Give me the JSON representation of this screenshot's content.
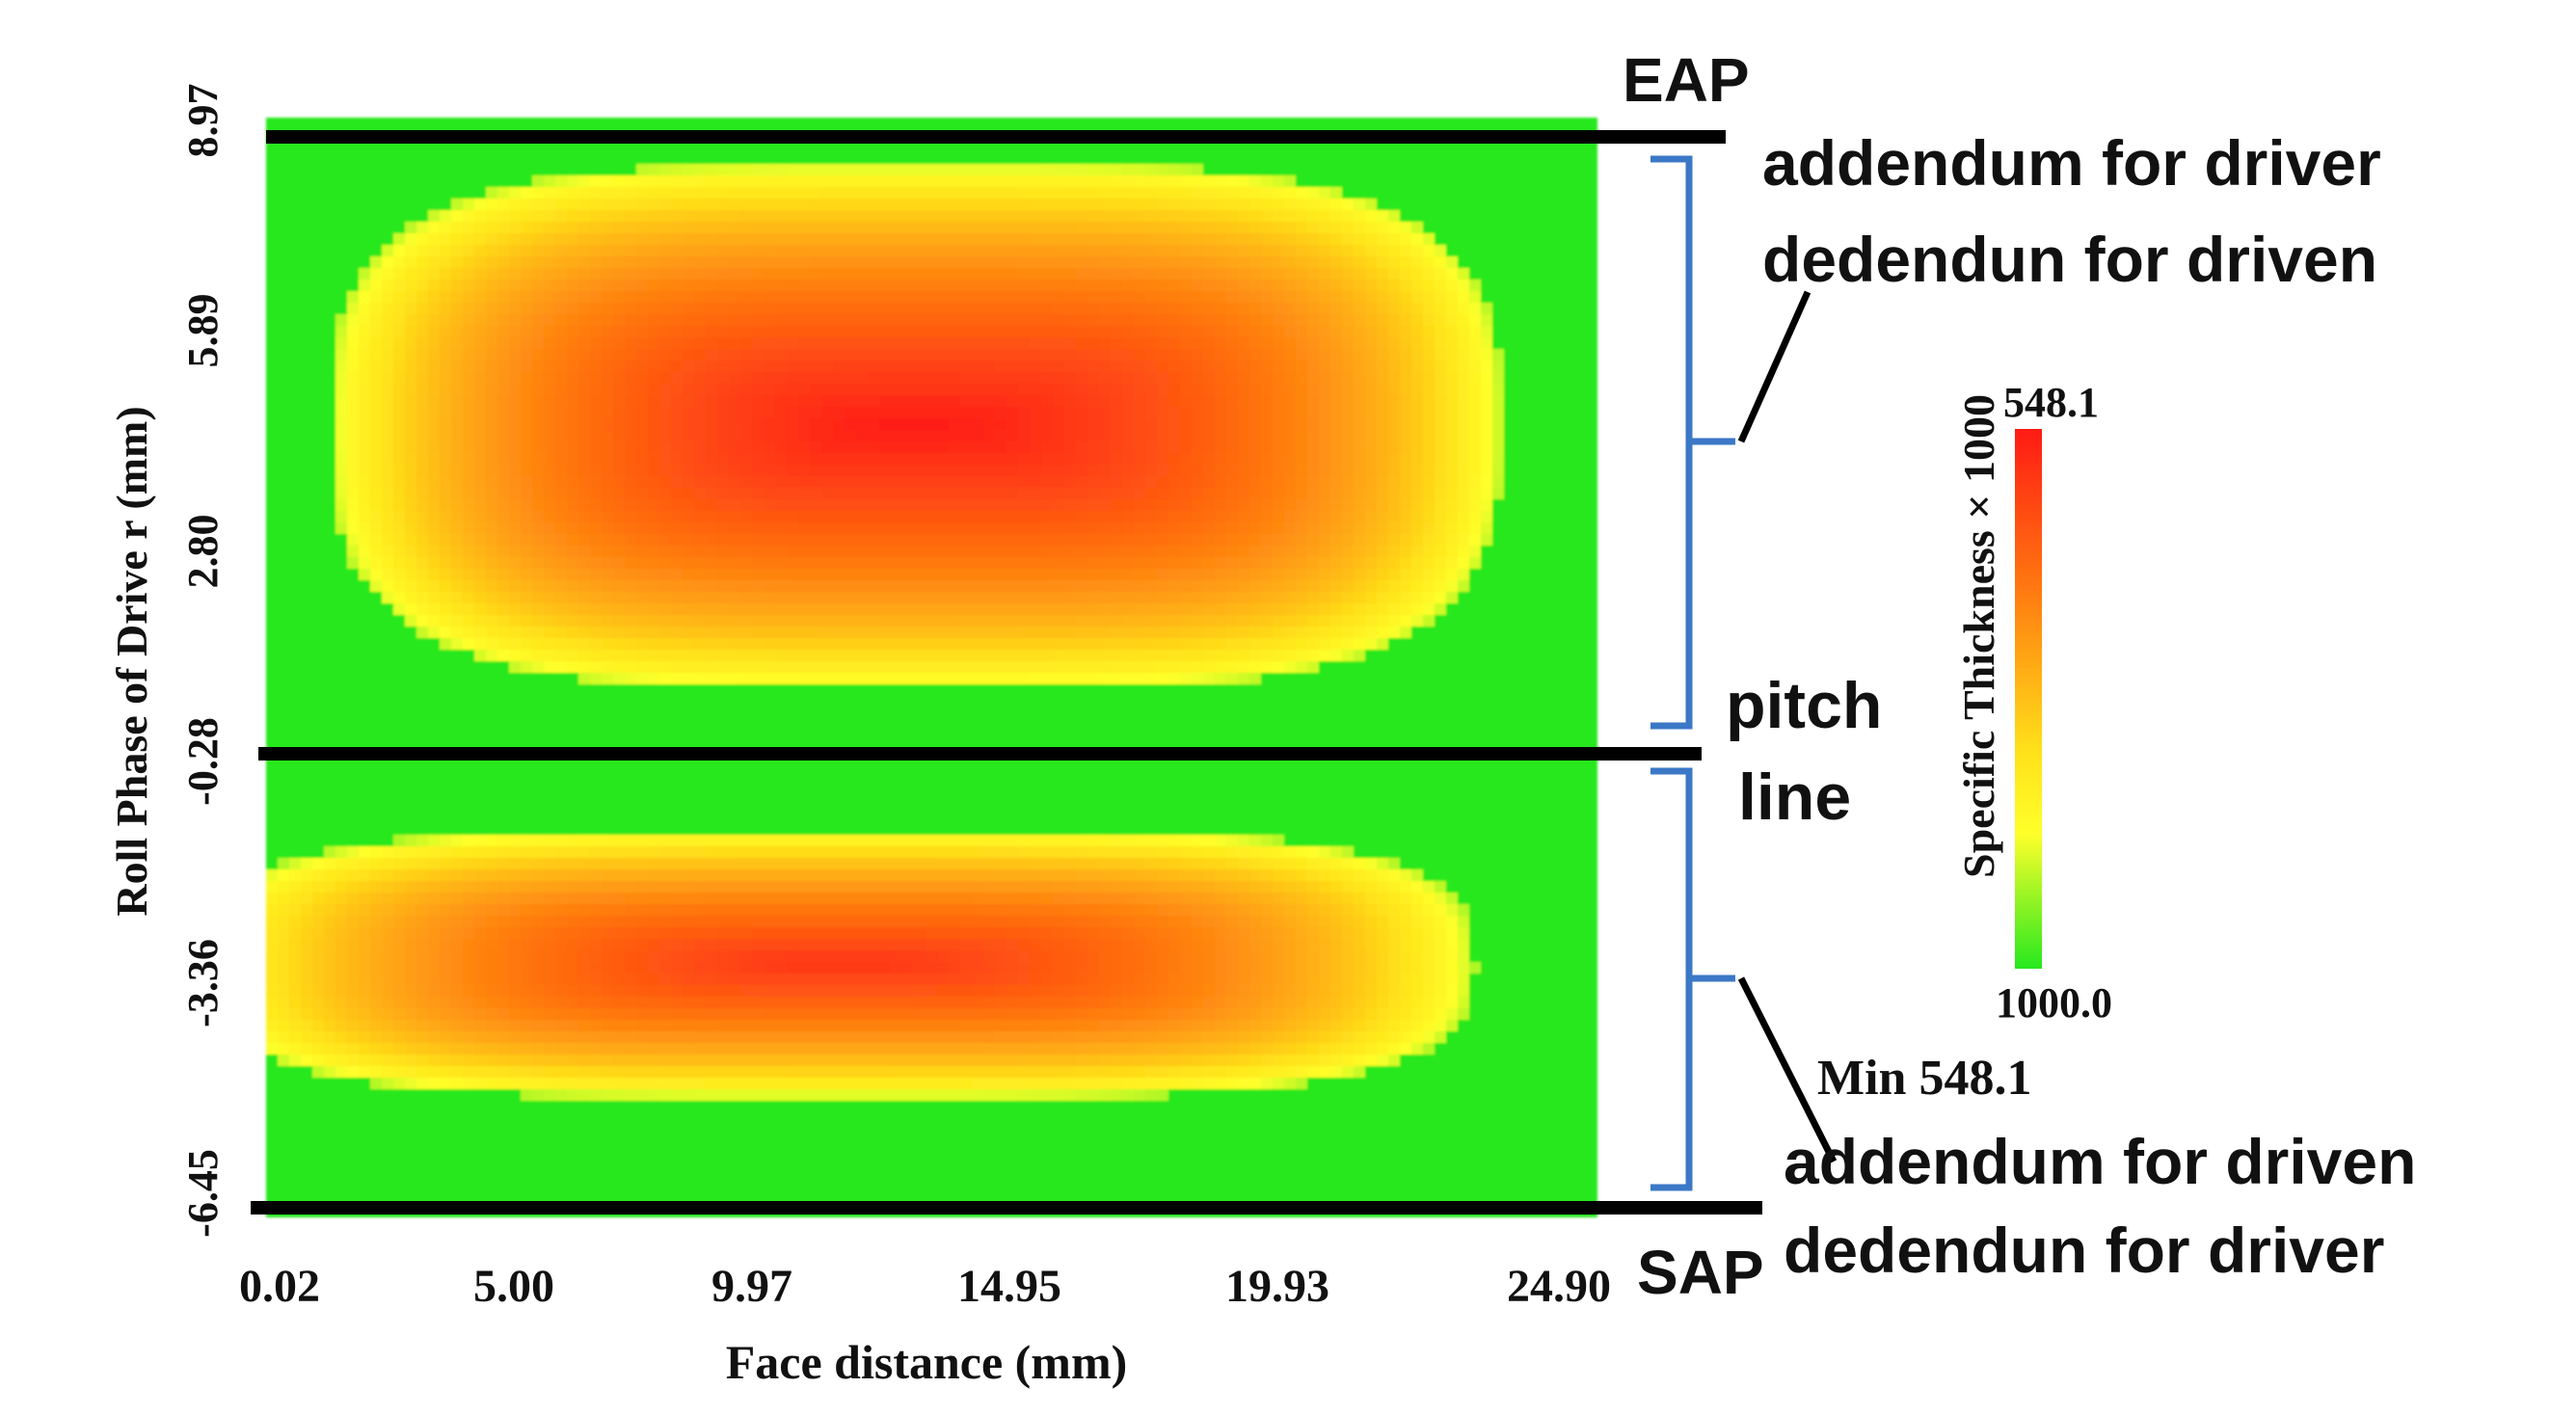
{
  "chart_data": {
    "type": "heatmap",
    "title": "",
    "xlabel": "Face distance (mm)",
    "ylabel": "Roll Phase of Drive r (mm)",
    "x_ticks": [
      "0.02",
      "5.00",
      "9.97",
      "14.95",
      "19.93",
      "24.90"
    ],
    "y_ticks": [
      "8.97",
      "5.89",
      "2.80",
      "-0.28",
      "-3.36",
      "-6.45"
    ],
    "xlim": [
      0.02,
      26.1
    ],
    "ylim": [
      -6.45,
      9.4
    ],
    "colorbar": {
      "label": "Specific Thickness × 1000",
      "max_label": "548.1",
      "min_label": "1000.0",
      "colors": [
        "#ff1a14",
        "#ff7a10",
        "#ffe21a",
        "#ffff2a",
        "#26e81e"
      ]
    },
    "min_annotation": "Min 548.1",
    "reference_lines": [
      {
        "name": "EAP",
        "y": 8.97
      },
      {
        "name": "pitch line",
        "y": -0.28
      },
      {
        "name": "SAP",
        "y": -6.45
      }
    ],
    "regions": [
      {
        "name": "upper_hot_zone",
        "center_x": 12.8,
        "center_y": 4.9,
        "span_x": 11.7,
        "span_y": 3.9,
        "peak": 548.1
      },
      {
        "name": "lower_hot_zone",
        "center_x": 11.3,
        "center_y": -2.9,
        "span_x": 12.7,
        "span_y": 2.0,
        "peak": 585
      }
    ],
    "annotations": {
      "eap": "EAP",
      "sap": "SAP",
      "pitch_line_1": "pitch",
      "pitch_line_2": "line",
      "upper_line1": "addendum for driver",
      "upper_line2": "dedendun for driven",
      "lower_line1": "addendum for driven",
      "lower_line2": "dedendun for driver"
    }
  }
}
